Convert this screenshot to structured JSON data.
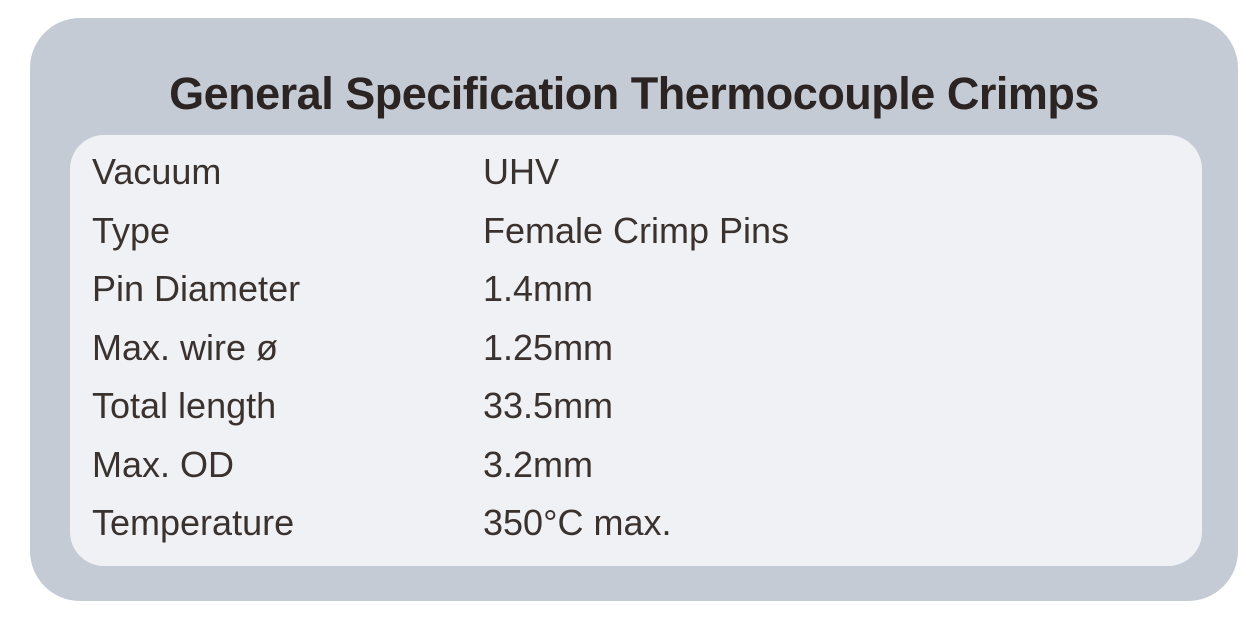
{
  "card": {
    "title": "General Specification Thermocouple Crimps",
    "rows": [
      {
        "label": "Vacuum",
        "value": "UHV"
      },
      {
        "label": "Type",
        "value": "Female Crimp Pins"
      },
      {
        "label": "Pin Diameter",
        "value": "1.4mm"
      },
      {
        "label": "Max. wire ø",
        "value": "1.25mm"
      },
      {
        "label": "Total length",
        "value": "33.5mm"
      },
      {
        "label": "Max. OD",
        "value": "3.2mm"
      },
      {
        "label": "Temperature",
        "value": "350°C max."
      }
    ]
  },
  "colors": {
    "outer": "#c5cbd5",
    "panel": "#f0f1f4",
    "title_text": "#2b2422",
    "body_text": "#3a322f",
    "page_bg": "#ffffff"
  }
}
